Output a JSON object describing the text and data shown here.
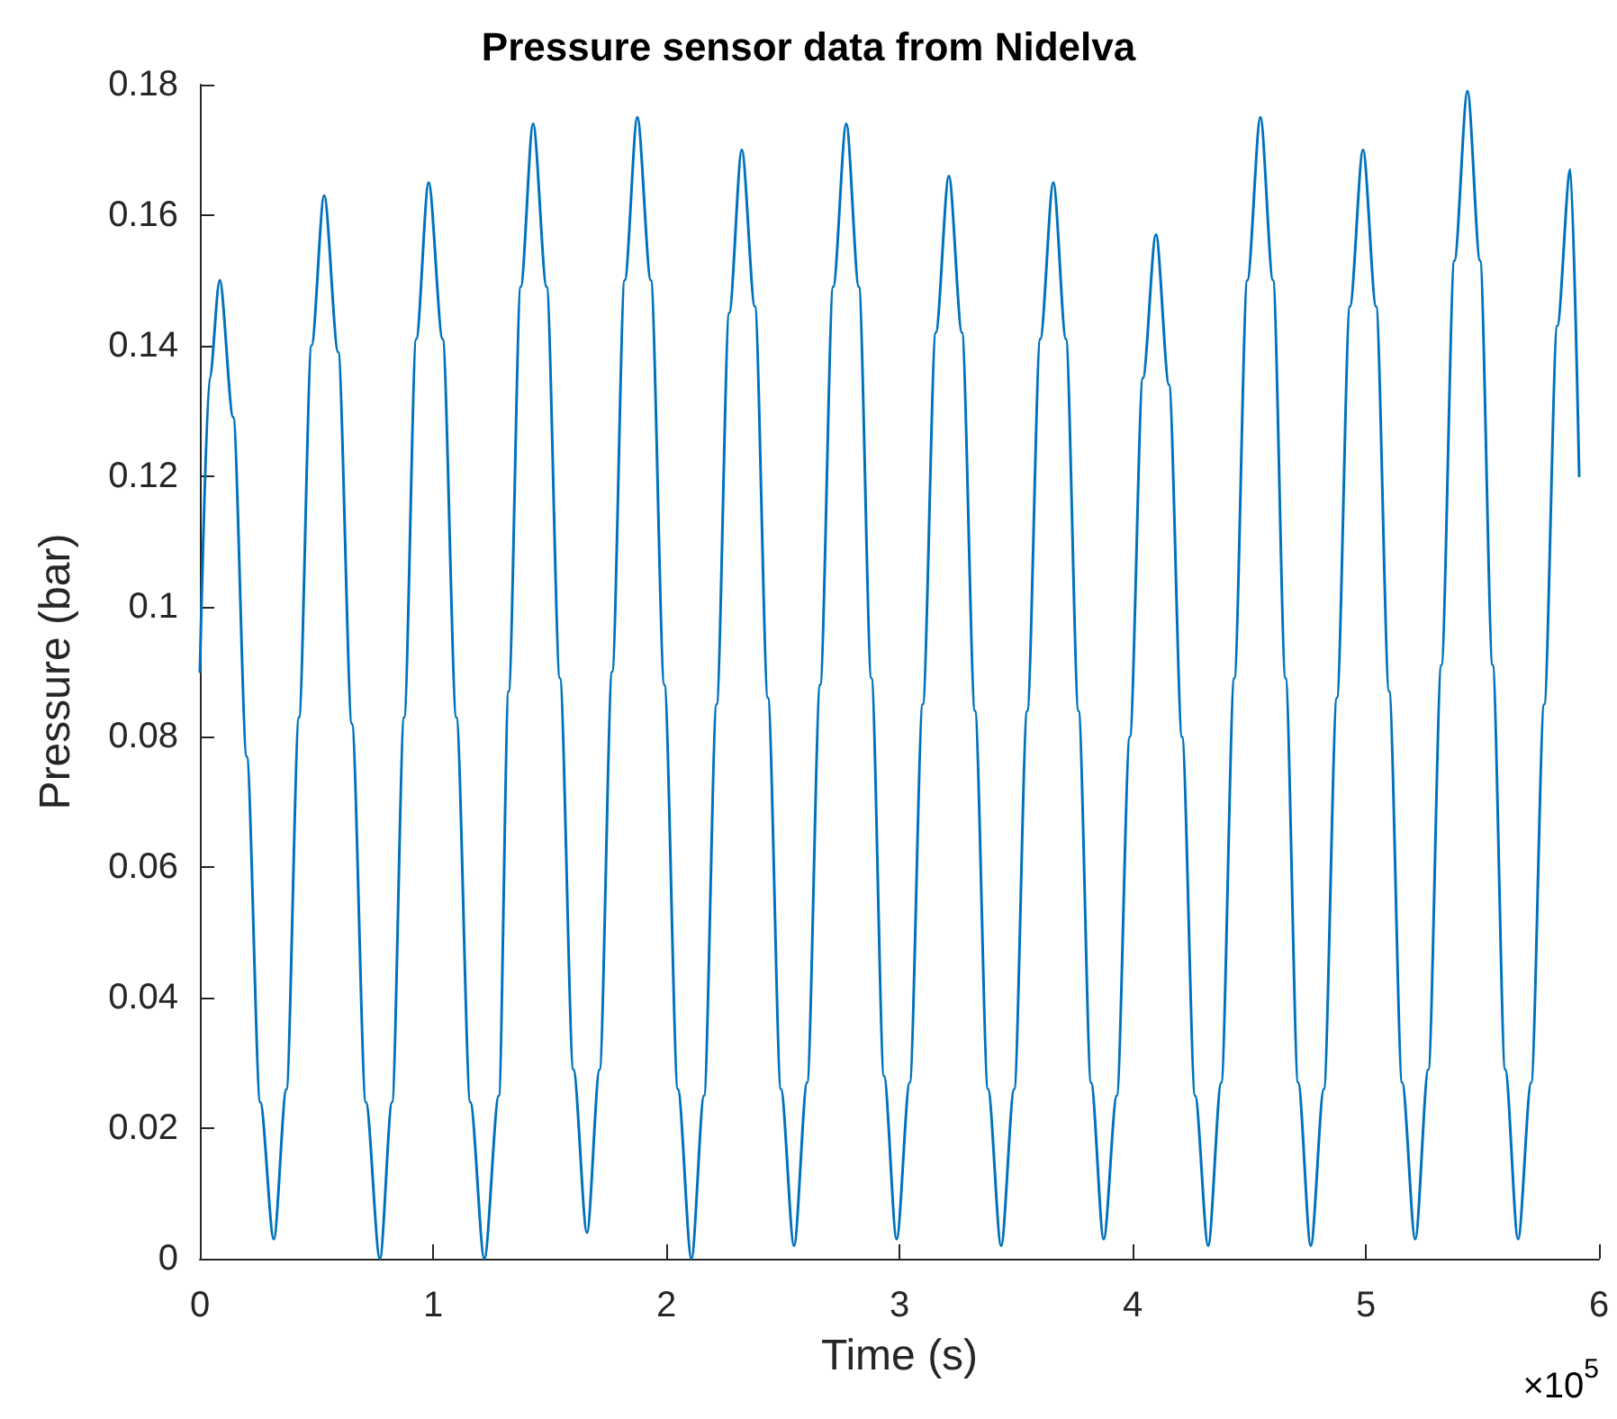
{
  "chart_data": {
    "type": "line",
    "title": "Pressure sensor data from Nidelva",
    "xlabel": "Time (s)",
    "ylabel": "Pressure (bar)",
    "annotations": [
      "×10$^{5}$"
    ],
    "xlim": [
      0,
      6
    ],
    "xticks": [
      0,
      1,
      2,
      3,
      4,
      5,
      6
    ],
    "ylim": [
      0,
      0.18
    ],
    "yticks": [
      0,
      0.02,
      0.04,
      0.06,
      0.08,
      0.1,
      0.12,
      0.14,
      0.16,
      0.18
    ],
    "grid": false,
    "series": [
      {
        "color": "#0072bd",
        "x": [
          0,
          0.042,
          0.085,
          0.143,
          0.201,
          0.259,
          0.317,
          0.371,
          0.425,
          0.479,
          0.533,
          0.593,
          0.652,
          0.712,
          0.772,
          0.824,
          0.876,
          0.928,
          0.981,
          1.041,
          1.1,
          1.16,
          1.22,
          1.282,
          1.324,
          1.376,
          1.429,
          1.487,
          1.544,
          1.602,
          1.66,
          1.714,
          1.768,
          1.822,
          1.876,
          1.934,
          1.992,
          2.05,
          2.108,
          2.162,
          2.216,
          2.27,
          2.324,
          2.38,
          2.436,
          2.492,
          2.548,
          2.604,
          2.66,
          2.716,
          2.772,
          2.826,
          2.88,
          2.934,
          2.988,
          3.044,
          3.1,
          3.156,
          3.212,
          3.268,
          3.324,
          3.38,
          3.436,
          3.492,
          3.548,
          3.604,
          3.66,
          3.714,
          3.768,
          3.822,
          3.876,
          3.932,
          3.988,
          4.044,
          4.1,
          4.156,
          4.212,
          4.268,
          4.324,
          4.38,
          4.436,
          4.492,
          4.548,
          4.602,
          4.656,
          4.71,
          4.764,
          4.82,
          4.876,
          4.932,
          4.988,
          5.044,
          5.1,
          5.156,
          5.212,
          5.268,
          5.324,
          5.38,
          5.436,
          5.49,
          5.544,
          5.598,
          5.653,
          5.709,
          5.765,
          5.821,
          5.877,
          5.915
        ],
        "values": [
          0.09,
          0.135,
          0.15,
          0.129,
          0.077,
          0.024,
          0.003,
          0.026,
          0.083,
          0.14,
          0.163,
          0.139,
          0.082,
          0.024,
          0.0,
          0.024,
          0.083,
          0.141,
          0.165,
          0.141,
          0.083,
          0.024,
          0.0,
          0.025,
          0.087,
          0.149,
          0.174,
          0.149,
          0.089,
          0.029,
          0.004,
          0.029,
          0.09,
          0.15,
          0.175,
          0.15,
          0.088,
          0.026,
          0.0,
          0.025,
          0.085,
          0.145,
          0.17,
          0.146,
          0.086,
          0.026,
          0.002,
          0.027,
          0.088,
          0.149,
          0.174,
          0.149,
          0.089,
          0.028,
          0.003,
          0.027,
          0.085,
          0.142,
          0.166,
          0.142,
          0.084,
          0.026,
          0.002,
          0.026,
          0.084,
          0.141,
          0.165,
          0.141,
          0.084,
          0.027,
          0.003,
          0.025,
          0.08,
          0.135,
          0.157,
          0.134,
          0.08,
          0.025,
          0.002,
          0.027,
          0.089,
          0.15,
          0.175,
          0.15,
          0.089,
          0.027,
          0.002,
          0.026,
          0.086,
          0.146,
          0.17,
          0.146,
          0.087,
          0.027,
          0.003,
          0.029,
          0.091,
          0.153,
          0.179,
          0.153,
          0.091,
          0.029,
          0.003,
          0.027,
          0.085,
          0.143,
          0.167,
          0.12
        ]
      }
    ]
  }
}
